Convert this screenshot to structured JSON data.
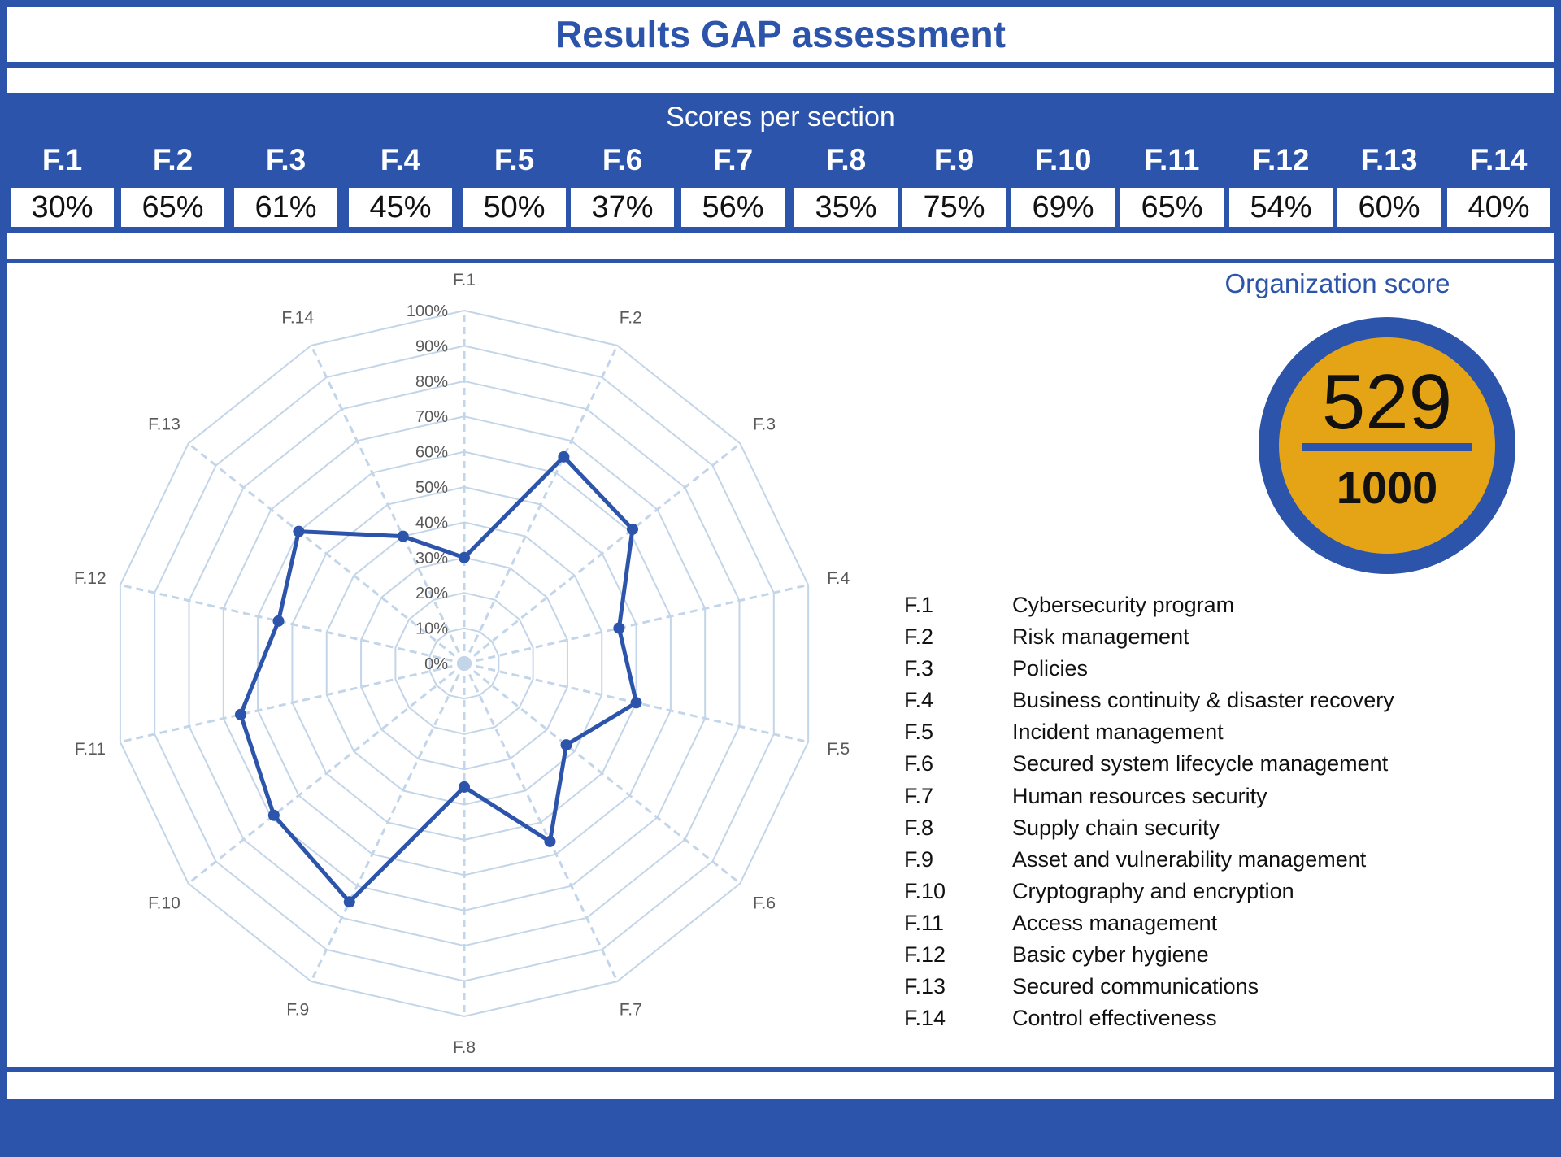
{
  "title": "Results GAP assessment",
  "scores_header": "Scores per section",
  "sections": [
    {
      "code": "F.1",
      "score": "30%",
      "name": "Cybersecurity program"
    },
    {
      "code": "F.2",
      "score": "65%",
      "name": "Risk management"
    },
    {
      "code": "F.3",
      "score": "61%",
      "name": "Policies"
    },
    {
      "code": "F.4",
      "score": "45%",
      "name": "Business continuity & disaster recovery"
    },
    {
      "code": "F.5",
      "score": "50%",
      "name": "Incident management"
    },
    {
      "code": "F.6",
      "score": "37%",
      "name": "Secured system lifecycle management"
    },
    {
      "code": "F.7",
      "score": "56%",
      "name": "Human resources security"
    },
    {
      "code": "F.8",
      "score": "35%",
      "name": "Supply chain security"
    },
    {
      "code": "F.9",
      "score": "75%",
      "name": "Asset and vulnerability management"
    },
    {
      "code": "F.10",
      "score": "69%",
      "name": "Cryptography and encryption"
    },
    {
      "code": "F.11",
      "score": "65%",
      "name": "Access management"
    },
    {
      "code": "F.12",
      "score": "54%",
      "name": "Basic cyber hygiene"
    },
    {
      "code": "F.13",
      "score": "60%",
      "name": "Secured communications"
    },
    {
      "code": "F.14",
      "score": "40%",
      "name": "Control effectiveness"
    }
  ],
  "organization": {
    "label": "Organization score",
    "score": "529",
    "max": "1000"
  },
  "colors": {
    "primary": "#2b54aa",
    "badge_fill": "#e4a416",
    "grid": "#c3d5e8",
    "series": "#2b54aa"
  },
  "chart_data": {
    "type": "radar",
    "categories": [
      "F.1",
      "F.2",
      "F.3",
      "F.4",
      "F.5",
      "F.6",
      "F.7",
      "F.8",
      "F.9",
      "F.10",
      "F.11",
      "F.12",
      "F.13",
      "F.14"
    ],
    "values": [
      30,
      65,
      61,
      45,
      50,
      37,
      56,
      35,
      75,
      69,
      65,
      54,
      60,
      40
    ],
    "rlim": [
      0,
      100
    ],
    "ticks": [
      "0%",
      "10%",
      "20%",
      "30%",
      "40%",
      "50%",
      "60%",
      "70%",
      "80%",
      "90%",
      "100%"
    ],
    "grid": true
  }
}
